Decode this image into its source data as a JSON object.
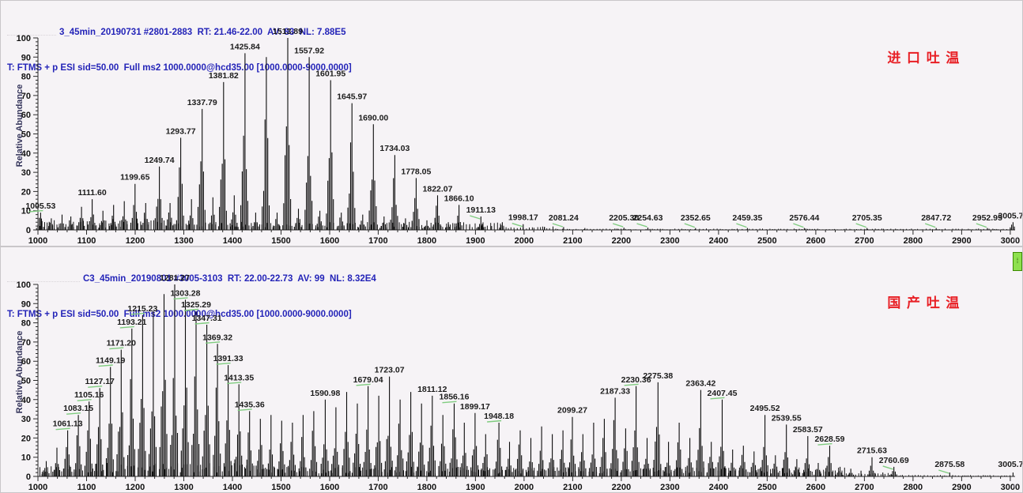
{
  "app": {
    "accent_blue": "#2424b8",
    "annotation_red": "#e81f25",
    "leader_green": "#7fcc7f"
  },
  "panels": [
    {
      "header_line1": "3_45min_20190731 #2801-2883  RT: 21.46-22.00  AV: 83  NL: 7.88E5",
      "header_line2": "T: FTMS + p ESI sid=50.00  Full ms2 1000.0000@hcd35.00 [1000.0000-9000.0000]",
      "annotation": "进口吐温",
      "ylabel": "Relative Abundance",
      "return_mark": "↵"
    },
    {
      "header_line1": "C3_45min_20190801 #3005-3103  RT: 22.00-22.73  AV: 99  NL: 8.32E4",
      "header_line2": "T: FTMS + p ESI sid=50.00  Full ms2 1000.0000@hcd35.00 [1000.0000-9000.0000]",
      "annotation": "国产吐温",
      "ylabel": "Relative Abundance",
      "return_mark": "↵",
      "handle_glyph": "⁞"
    }
  ],
  "chart_data": [
    {
      "type": "bar",
      "subtype": "mass-spectrum",
      "title": "3_45min_20190731 #2801-2883",
      "xlabel": "",
      "ylabel": "Relative Abundance",
      "xlim": [
        1000,
        3010
      ],
      "ylim": [
        0,
        100
      ],
      "x_tick_major": 100,
      "x_tick_minor": 20,
      "y_tick_major": 10,
      "y_tick_minor": 2,
      "seed": 7,
      "noise": [
        [
          1004,
          1260,
          2.0,
          4.0
        ],
        [
          1260,
          1960,
          1.2,
          3.0
        ],
        [
          1960,
          2060,
          0.6,
          1.2
        ],
        [
          2060,
          3005,
          0.2,
          0.5
        ]
      ],
      "peaks": [
        [
          1005.53,
          9,
          1,
          1
        ],
        [
          1027.5,
          6,
          0,
          0
        ],
        [
          1049.6,
          8,
          0,
          0
        ],
        [
          1067.6,
          7,
          0,
          0
        ],
        [
          1089.6,
          12,
          0,
          0
        ],
        [
          1111.6,
          16,
          1,
          0
        ],
        [
          1133.6,
          10,
          0,
          0
        ],
        [
          1155.6,
          13,
          0,
          0
        ],
        [
          1177.6,
          15,
          0,
          0
        ],
        [
          1199.65,
          24,
          1,
          0
        ],
        [
          1221.7,
          14,
          0,
          0
        ],
        [
          1249.74,
          33,
          1,
          0
        ],
        [
          1271.8,
          14,
          0,
          0
        ],
        [
          1293.77,
          48,
          1,
          0
        ],
        [
          1315.8,
          16,
          0,
          0
        ],
        [
          1337.79,
          63,
          1,
          0
        ],
        [
          1359.8,
          17,
          0,
          0
        ],
        [
          1381.82,
          77,
          1,
          0
        ],
        [
          1403.8,
          18,
          0,
          0
        ],
        [
          1425.84,
          92,
          1,
          0
        ],
        [
          1447.9,
          9,
          0,
          0
        ],
        [
          1469.86,
          90,
          0,
          0
        ],
        [
          1491.9,
          9,
          0,
          0
        ],
        [
          1513.89,
          100,
          1,
          0
        ],
        [
          1535.9,
          11,
          0,
          0
        ],
        [
          1557.92,
          90,
          1,
          0
        ],
        [
          1579.9,
          10,
          0,
          0
        ],
        [
          1601.95,
          78,
          1,
          0
        ],
        [
          1623.9,
          9,
          0,
          0
        ],
        [
          1645.97,
          66,
          1,
          0
        ],
        [
          1668.0,
          8,
          0,
          0
        ],
        [
          1690.0,
          55,
          1,
          0
        ],
        [
          1712.0,
          7,
          0,
          0
        ],
        [
          1734.03,
          39,
          1,
          0
        ],
        [
          1756.0,
          6,
          0,
          0
        ],
        [
          1778.05,
          27,
          1,
          0
        ],
        [
          1800.1,
          5,
          0,
          0
        ],
        [
          1822.07,
          18,
          1,
          0
        ],
        [
          1844.1,
          4,
          0,
          0
        ],
        [
          1866.1,
          13,
          1,
          0
        ],
        [
          1888.1,
          3,
          0,
          0
        ],
        [
          1911.13,
          7,
          1,
          1
        ],
        [
          1933.1,
          2,
          0,
          0
        ],
        [
          1955.2,
          4,
          0,
          0
        ],
        [
          1998.17,
          3,
          1,
          1
        ],
        [
          2042.0,
          1.5,
          0,
          0
        ],
        [
          2081.24,
          1.5,
          1,
          1
        ],
        [
          2125.0,
          1,
          0,
          0
        ],
        [
          2205.3,
          1.2,
          1,
          1
        ],
        [
          2254.63,
          1.2,
          1,
          1
        ],
        [
          2352.65,
          1,
          1,
          1
        ],
        [
          2459.35,
          1,
          1,
          1
        ],
        [
          2576.44,
          1,
          1,
          1
        ],
        [
          2705.35,
          1,
          1,
          1
        ],
        [
          2847.72,
          1,
          1,
          1
        ],
        [
          2952.95,
          1,
          1,
          1
        ],
        [
          3005.71,
          4,
          1,
          0
        ]
      ]
    },
    {
      "type": "bar",
      "subtype": "mass-spectrum",
      "title": "C3_45min_20190801 #3005-3103",
      "xlabel": "",
      "ylabel": "Relative Abundance",
      "xlim": [
        1000,
        3010
      ],
      "ylim": [
        0,
        100
      ],
      "x_tick_major": 100,
      "x_tick_minor": 20,
      "y_tick_major": 10,
      "y_tick_minor": 2,
      "seed": 13,
      "noise": [
        [
          1004,
          1450,
          2.0,
          5.0
        ],
        [
          1450,
          2660,
          1.5,
          3.5
        ],
        [
          2660,
          2770,
          0.6,
          1.2
        ],
        [
          2770,
          3005,
          0.25,
          0.5
        ]
      ],
      "peaks": [
        [
          1017.0,
          8,
          0,
          0
        ],
        [
          1039.0,
          15,
          0,
          0
        ],
        [
          1061.13,
          24,
          1,
          1
        ],
        [
          1083.15,
          32,
          1,
          1
        ],
        [
          1105.16,
          39,
          1,
          1
        ],
        [
          1127.17,
          46,
          1,
          1
        ],
        [
          1149.19,
          57,
          1,
          1
        ],
        [
          1171.2,
          66,
          1,
          1
        ],
        [
          1193.21,
          77,
          1,
          1
        ],
        [
          1215.23,
          84,
          1,
          1
        ],
        [
          1237.2,
          86,
          0,
          0
        ],
        [
          1259.3,
          95,
          0,
          0
        ],
        [
          1281.27,
          100,
          1,
          0
        ],
        [
          1303.28,
          92,
          1,
          1
        ],
        [
          1325.29,
          86,
          1,
          1
        ],
        [
          1347.31,
          79,
          1,
          1
        ],
        [
          1369.32,
          69,
          1,
          1
        ],
        [
          1391.33,
          58,
          1,
          1
        ],
        [
          1413.35,
          48,
          1,
          1
        ],
        [
          1435.36,
          34,
          1,
          1
        ],
        [
          1457.4,
          30,
          0,
          0
        ],
        [
          1479.4,
          32,
          0,
          0
        ],
        [
          1501.4,
          29,
          0,
          0
        ],
        [
          1523.4,
          28,
          0,
          0
        ],
        [
          1545.4,
          32,
          0,
          0
        ],
        [
          1567.4,
          34,
          0,
          0
        ],
        [
          1590.98,
          40,
          1,
          0
        ],
        [
          1613.0,
          36,
          0,
          0
        ],
        [
          1635.0,
          44,
          0,
          0
        ],
        [
          1657.0,
          38,
          0,
          0
        ],
        [
          1679.04,
          47,
          1,
          1
        ],
        [
          1701.0,
          42,
          0,
          0
        ],
        [
          1723.07,
          52,
          1,
          0
        ],
        [
          1745.0,
          40,
          0,
          0
        ],
        [
          1767.0,
          44,
          0,
          0
        ],
        [
          1789.0,
          38,
          0,
          0
        ],
        [
          1811.12,
          42,
          1,
          0
        ],
        [
          1833.0,
          32,
          0,
          0
        ],
        [
          1856.16,
          38,
          1,
          1
        ],
        [
          1877.0,
          28,
          0,
          0
        ],
        [
          1899.17,
          33,
          1,
          0
        ],
        [
          1921.0,
          22,
          0,
          0
        ],
        [
          1948.18,
          28,
          1,
          1
        ],
        [
          1970.0,
          18,
          0,
          0
        ],
        [
          1992.0,
          24,
          0,
          0
        ],
        [
          2014.0,
          20,
          0,
          0
        ],
        [
          2036.0,
          26,
          0,
          0
        ],
        [
          2058.0,
          22,
          0,
          0
        ],
        [
          2080.0,
          24,
          0,
          0
        ],
        [
          2099.27,
          31,
          1,
          0
        ],
        [
          2121.0,
          22,
          0,
          0
        ],
        [
          2143.0,
          28,
          0,
          0
        ],
        [
          2165.0,
          30,
          0,
          0
        ],
        [
          2187.33,
          41,
          1,
          0
        ],
        [
          2209.0,
          25,
          0,
          0
        ],
        [
          2230.36,
          47,
          1,
          1
        ],
        [
          2253.0,
          20,
          0,
          0
        ],
        [
          2275.38,
          49,
          1,
          0
        ],
        [
          2297.0,
          18,
          0,
          0
        ],
        [
          2319.0,
          28,
          0,
          0
        ],
        [
          2341.0,
          20,
          0,
          0
        ],
        [
          2363.42,
          45,
          1,
          0
        ],
        [
          2385.0,
          18,
          0,
          0
        ],
        [
          2407.45,
          40,
          1,
          1
        ],
        [
          2429.0,
          14,
          0,
          0
        ],
        [
          2451.0,
          16,
          0,
          0
        ],
        [
          2473.0,
          13,
          0,
          0
        ],
        [
          2495.52,
          32,
          1,
          0
        ],
        [
          2517.0,
          11,
          0,
          0
        ],
        [
          2539.55,
          27,
          1,
          0
        ],
        [
          2561.0,
          9,
          0,
          0
        ],
        [
          2583.57,
          21,
          1,
          0
        ],
        [
          2605.0,
          7,
          0,
          0
        ],
        [
          2628.59,
          16,
          1,
          1
        ],
        [
          2650.0,
          5,
          0,
          0
        ],
        [
          2672.0,
          4,
          0,
          0
        ],
        [
          2693.0,
          3,
          0,
          0
        ],
        [
          2715.63,
          10,
          1,
          0
        ],
        [
          2738.0,
          2,
          0,
          0
        ],
        [
          2760.69,
          5,
          1,
          1
        ],
        [
          2875.58,
          2,
          1,
          1
        ],
        [
          3005.7,
          2,
          1,
          0
        ]
      ]
    }
  ]
}
